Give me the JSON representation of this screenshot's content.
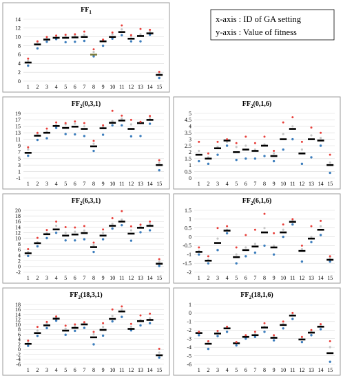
{
  "legend": {
    "x_axis": "x-axis : ID of GA setting",
    "y_axis": "y-axis : Value of fitness"
  },
  "colors": {
    "median": "#000000",
    "best": "#e8413c",
    "upper": "#c6c6c6",
    "lower": "#3d7ebd",
    "highlight_median": "#7a7a3a"
  },
  "chart_data": [
    {
      "type": "scatter",
      "title_main": "FF",
      "title_sub": "1",
      "x": [
        1,
        2,
        3,
        4,
        5,
        6,
        7,
        8,
        9,
        10,
        11,
        12,
        13,
        14,
        15
      ],
      "xticks": [
        1,
        2,
        3,
        4,
        5,
        6,
        7,
        8,
        9,
        10,
        11,
        12,
        13,
        14,
        15
      ],
      "ylim": [
        0,
        14
      ],
      "yticks": [
        0,
        2,
        4,
        6,
        8,
        10,
        12,
        14
      ],
      "grid": true,
      "series": {
        "best": [
          5.1,
          9.0,
          10.0,
          10.3,
          10.5,
          10.6,
          11.2,
          7.2,
          9.4,
          11.0,
          12.6,
          10.4,
          11.8,
          11.6,
          2.1
        ],
        "upper": [
          4.6,
          8.8,
          9.6,
          10.0,
          10.2,
          10.3,
          10.5,
          6.6,
          9.2,
          10.6,
          11.7,
          10.1,
          10.6,
          11.2,
          1.8
        ],
        "median": [
          4.2,
          8.3,
          9.4,
          9.8,
          9.8,
          9.9,
          10.0,
          6.0,
          9.0,
          10.0,
          11.1,
          9.6,
          10.2,
          10.8,
          1.4
        ],
        "lower": [
          3.5,
          7.4,
          8.9,
          9.5,
          8.8,
          8.9,
          9.1,
          5.6,
          8.0,
          9.6,
          10.4,
          9.0,
          9.0,
          10.5,
          0.7
        ]
      },
      "highlight": [
        8
      ]
    },
    {
      "type": "scatter",
      "title_main": "FF",
      "title_sub": "2",
      "title_args": "(0,3,1)",
      "x": [
        1,
        2,
        3,
        4,
        5,
        6,
        7,
        8,
        9,
        10,
        11,
        12,
        13,
        14,
        15
      ],
      "xticks": [
        1,
        2,
        3,
        4,
        5,
        6,
        7,
        8,
        9,
        10,
        11,
        12,
        13,
        14,
        15
      ],
      "ylim": [
        -1,
        19
      ],
      "yticks": [
        -1,
        1,
        3,
        5,
        7,
        9,
        11,
        13,
        15,
        17,
        19
      ],
      "grid": true,
      "series": {
        "best": [
          8.5,
          13.0,
          14.3,
          16.2,
          16.0,
          16.5,
          16.0,
          10.5,
          15.3,
          19.8,
          18.3,
          17.0,
          16.4,
          18.2,
          4.5
        ],
        "upper": [
          7.8,
          12.6,
          13.4,
          15.4,
          15.6,
          15.8,
          15.0,
          9.6,
          14.8,
          16.6,
          17.4,
          15.6,
          16.0,
          17.6,
          3.7
        ],
        "median": [
          6.8,
          12.1,
          13.0,
          15.1,
          14.5,
          14.9,
          14.2,
          8.8,
          14.4,
          16.1,
          16.8,
          14.2,
          16.0,
          17.0,
          3.0
        ],
        "lower": [
          5.9,
          10.8,
          11.3,
          14.5,
          12.6,
          12.5,
          12.0,
          7.4,
          12.4,
          15.3,
          15.3,
          11.9,
          12.0,
          15.8,
          1.4
        ]
      },
      "highlight": []
    },
    {
      "type": "scatter",
      "title_main": "FF",
      "title_sub": "2",
      "title_args": "(0,1,6)",
      "x": [
        1,
        2,
        3,
        4,
        5,
        6,
        7,
        8,
        9,
        10,
        11,
        12,
        13,
        14,
        15
      ],
      "xticks": [
        1,
        2,
        3,
        4,
        5,
        6,
        7,
        8,
        9,
        10,
        11,
        12,
        13,
        14,
        15
      ],
      "ylim": [
        0,
        5
      ],
      "yticks": [
        0,
        0.5,
        1,
        1.5,
        2,
        2.5,
        3,
        3.5,
        4,
        4.5,
        5
      ],
      "grid": true,
      "series": {
        "best": [
          2.8,
          1.9,
          2.8,
          3.0,
          2.7,
          3.2,
          2.7,
          3.2,
          2.1,
          4.3,
          4.7,
          2.8,
          3.9,
          3.5,
          1.8
        ],
        "upper": [
          2.1,
          1.6,
          2.4,
          2.8,
          2.4,
          2.5,
          2.2,
          2.6,
          1.9,
          3.4,
          4.0,
          2.2,
          3.3,
          3.1,
          1.2
        ],
        "median": [
          1.8,
          1.5,
          2.3,
          2.9,
          2.0,
          2.2,
          2.1,
          2.5,
          1.7,
          3.0,
          3.8,
          1.9,
          3.0,
          2.9,
          1.0
        ],
        "lower": [
          1.3,
          1.1,
          1.8,
          2.5,
          1.4,
          1.5,
          1.5,
          1.7,
          1.3,
          2.2,
          3.0,
          1.1,
          1.6,
          2.5,
          0.4
        ]
      },
      "highlight": []
    },
    {
      "type": "scatter",
      "title_main": "FF",
      "title_sub": "2",
      "title_args": "(6,3,1)",
      "x": [
        1,
        2,
        3,
        4,
        5,
        6,
        7,
        8,
        9,
        10,
        11,
        12,
        13,
        14,
        15
      ],
      "xticks": [
        1,
        2,
        3,
        4,
        5,
        6,
        7,
        8,
        9,
        10,
        11,
        12,
        13,
        14,
        15
      ],
      "ylim": [
        -2,
        20
      ],
      "yticks": [
        -2,
        0,
        2,
        4,
        6,
        8,
        10,
        12,
        14,
        16,
        18,
        20
      ],
      "grid": true,
      "series": {
        "best": [
          6.2,
          10.2,
          13.0,
          16.0,
          14.0,
          13.9,
          14.4,
          8.5,
          13.2,
          17.2,
          19.7,
          14.3,
          14.9,
          16.0,
          2.6
        ],
        "upper": [
          5.2,
          8.6,
          12.0,
          14.5,
          12.0,
          12.4,
          12.8,
          7.6,
          12.0,
          15.2,
          16.7,
          12.9,
          14.2,
          15.1,
          1.7
        ],
        "median": [
          4.7,
          8.3,
          11.5,
          13.2,
          11.0,
          11.4,
          11.9,
          6.9,
          11.0,
          14.5,
          16.0,
          11.7,
          13.8,
          14.5,
          1.0
        ],
        "lower": [
          3.8,
          7.2,
          10.1,
          12.0,
          9.3,
          9.3,
          9.7,
          5.2,
          9.7,
          13.5,
          14.7,
          9.2,
          12.2,
          12.9,
          0.2
        ]
      },
      "highlight": []
    },
    {
      "type": "scatter",
      "title_main": "FF",
      "title_sub": "2",
      "title_args": "(6,1,6)",
      "x": [
        1,
        2,
        3,
        4,
        5,
        6,
        7,
        8,
        9,
        10,
        11,
        12,
        13,
        14,
        15
      ],
      "xticks": [
        1,
        2,
        3,
        4,
        5,
        6,
        7,
        8,
        9,
        10,
        11,
        12,
        13,
        14,
        15
      ],
      "ylim": [
        -2,
        1.5
      ],
      "yticks": [
        -2,
        -1.5,
        -1,
        -0.5,
        0,
        0.5,
        1,
        1.5
      ],
      "grid": true,
      "series": {
        "best": [
          -0.6,
          -1.1,
          0.5,
          0.6,
          -0.6,
          0.1,
          0.4,
          1.3,
          0.2,
          0.7,
          1.0,
          -0.5,
          0.6,
          0.9,
          -1.1
        ],
        "upper": [
          -0.8,
          -1.3,
          -0.1,
          0.4,
          -1.0,
          -0.6,
          -0.4,
          0.5,
          -0.5,
          0.4,
          0.9,
          -0.7,
          0.0,
          0.6,
          -1.2
        ],
        "median": [
          -0.85,
          -1.35,
          -0.35,
          0.35,
          -1.15,
          -0.75,
          -0.55,
          0.25,
          -0.6,
          0.25,
          0.85,
          -0.8,
          -0.1,
          0.4,
          -1.3
        ],
        "lower": [
          -1.0,
          -1.5,
          -0.75,
          0.2,
          -1.5,
          -1.1,
          -0.9,
          -0.5,
          -1.0,
          0.0,
          0.7,
          -1.4,
          -0.3,
          0.1,
          -1.4
        ]
      },
      "highlight": []
    },
    {
      "type": "scatter",
      "title_main": "FF",
      "title_sub": "2",
      "title_args": "(18,3,1)",
      "x": [
        1,
        2,
        3,
        4,
        5,
        6,
        7,
        8,
        9,
        10,
        11,
        12,
        13,
        14,
        15
      ],
      "xticks": [
        1,
        2,
        3,
        4,
        5,
        6,
        7,
        8,
        9,
        10,
        11,
        12,
        13,
        14,
        15
      ],
      "ylim": [
        -6,
        18
      ],
      "yticks": [
        -6,
        -4,
        -2,
        0,
        2,
        4,
        6,
        8,
        10,
        12,
        14,
        16,
        18
      ],
      "grid": true,
      "series": {
        "best": [
          3.5,
          9.0,
          11.0,
          13.2,
          9.5,
          10.0,
          10.9,
          7.0,
          10.5,
          16.0,
          17.2,
          10.2,
          13.6,
          14.3,
          0.2
        ],
        "upper": [
          2.7,
          7.5,
          10.5,
          12.8,
          8.3,
          9.2,
          10.4,
          6.0,
          9.0,
          13.4,
          16.0,
          9.1,
          11.8,
          12.5,
          -1.3
        ],
        "median": [
          2.2,
          6.5,
          9.6,
          12.3,
          7.5,
          8.6,
          10.0,
          4.8,
          7.8,
          12.2,
          15.2,
          8.2,
          11.3,
          11.8,
          -2.4
        ],
        "lower": [
          1.4,
          5.4,
          8.5,
          11.5,
          5.8,
          7.4,
          8.6,
          2.0,
          5.5,
          11.2,
          13.0,
          7.6,
          9.6,
          10.5,
          -3.3
        ]
      },
      "highlight": []
    },
    {
      "type": "scatter",
      "title_main": "FF",
      "title_sub": "2",
      "title_args": "(18,1,6)",
      "x": [
        1,
        2,
        3,
        4,
        5,
        6,
        7,
        8,
        9,
        10,
        11,
        12,
        13,
        14,
        15
      ],
      "xticks": [
        1,
        2,
        3,
        4,
        5,
        6,
        7,
        8,
        9,
        10,
        11,
        12,
        13,
        14,
        15
      ],
      "ylim": [
        -6,
        1
      ],
      "yticks": [
        -6,
        -5,
        -4,
        -3,
        -2,
        -1,
        0,
        1
      ],
      "grid": true,
      "series": {
        "best": [
          -2.2,
          -3.3,
          -2.1,
          -1.6,
          -3.4,
          -2.6,
          -2.2,
          -1.2,
          -2.6,
          -1.0,
          0.0,
          -2.8,
          -2.0,
          -1.3,
          -3.3
        ],
        "upper": [
          -2.3,
          -3.5,
          -2.3,
          -1.7,
          -3.5,
          -2.7,
          -2.5,
          -1.6,
          -2.8,
          -1.3,
          -0.2,
          -3.0,
          -2.2,
          -1.5,
          -4.0
        ],
        "median": [
          -2.35,
          -3.6,
          -2.4,
          -1.8,
          -3.55,
          -2.8,
          -2.6,
          -1.7,
          -2.9,
          -1.4,
          -0.3,
          -3.1,
          -2.3,
          -1.6,
          -4.7
        ],
        "lower": [
          -2.6,
          -4.2,
          -2.7,
          -2.2,
          -3.8,
          -3.0,
          -2.8,
          -2.2,
          -3.2,
          -1.8,
          -0.7,
          -3.4,
          -2.6,
          -1.9,
          -5.7
        ]
      },
      "highlight": []
    }
  ]
}
